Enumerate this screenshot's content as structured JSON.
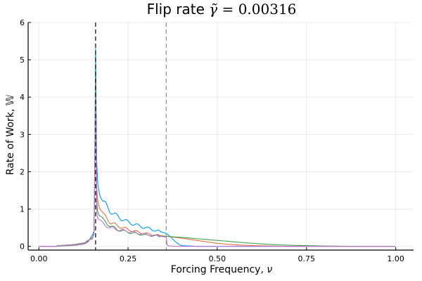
{
  "chart_data": {
    "type": "line",
    "title": {
      "prefix": "Flip rate ",
      "symbol": "γ̃",
      "equals": " = ",
      "value": "0.00316"
    },
    "xlabel": {
      "text": "Forcing Frequency, ",
      "symbol": "ν"
    },
    "ylabel": {
      "text": "Rate of Work, ",
      "symbol": "𝕎"
    },
    "xlim": [
      -0.03,
      1.05
    ],
    "ylim": [
      -0.1,
      6.0
    ],
    "xticks": [
      0.0,
      0.25,
      0.5,
      0.75,
      1.0
    ],
    "xtick_labels": [
      "0.00",
      "0.25",
      "0.50",
      "0.75",
      "1.00"
    ],
    "yticks": [
      0,
      1,
      2,
      3,
      4,
      5,
      6
    ],
    "ytick_labels": [
      "0",
      "1",
      "2",
      "3",
      "4",
      "5",
      "6"
    ],
    "grid": true,
    "legend": "none",
    "vlines": [
      {
        "x": 0.159,
        "color": "#222222"
      },
      {
        "x": 0.357,
        "color": "#999999"
      }
    ],
    "series": [
      {
        "color": "#009AFA",
        "points": [
          [
            0.0,
            0.0
          ],
          [
            0.05,
            0.0
          ],
          [
            0.1,
            0.02
          ],
          [
            0.13,
            0.06
          ],
          [
            0.15,
            0.25
          ],
          [
            0.155,
            0.4
          ],
          [
            0.159,
            5.3
          ],
          [
            0.162,
            2.3
          ],
          [
            0.165,
            1.7
          ],
          [
            0.17,
            1.5
          ],
          [
            0.18,
            1.2
          ],
          [
            0.2,
            0.95
          ],
          [
            0.22,
            0.8
          ],
          [
            0.25,
            0.65
          ],
          [
            0.28,
            0.55
          ],
          [
            0.3,
            0.5
          ],
          [
            0.33,
            0.42
          ],
          [
            0.357,
            0.35
          ],
          [
            0.37,
            0.25
          ],
          [
            0.38,
            0.15
          ],
          [
            0.39,
            0.07
          ],
          [
            0.4,
            0.02
          ],
          [
            0.45,
            0.0
          ],
          [
            0.6,
            0.0
          ],
          [
            0.8,
            0.0
          ],
          [
            1.0,
            0.0
          ]
        ]
      },
      {
        "color": "#E36F47",
        "points": [
          [
            0.0,
            0.0
          ],
          [
            0.05,
            0.0
          ],
          [
            0.1,
            0.02
          ],
          [
            0.13,
            0.06
          ],
          [
            0.15,
            0.2
          ],
          [
            0.155,
            0.35
          ],
          [
            0.159,
            4.5
          ],
          [
            0.162,
            1.6
          ],
          [
            0.165,
            1.3
          ],
          [
            0.17,
            1.1
          ],
          [
            0.18,
            0.85
          ],
          [
            0.2,
            0.65
          ],
          [
            0.22,
            0.55
          ],
          [
            0.25,
            0.45
          ],
          [
            0.28,
            0.38
          ],
          [
            0.3,
            0.34
          ],
          [
            0.33,
            0.3
          ],
          [
            0.357,
            0.27
          ],
          [
            0.4,
            0.22
          ],
          [
            0.45,
            0.15
          ],
          [
            0.5,
            0.08
          ],
          [
            0.55,
            0.04
          ],
          [
            0.6,
            0.02
          ],
          [
            0.7,
            0.0
          ],
          [
            1.0,
            0.0
          ]
        ]
      },
      {
        "color": "#3EA44E",
        "points": [
          [
            0.0,
            0.0
          ],
          [
            0.05,
            0.0
          ],
          [
            0.1,
            0.02
          ],
          [
            0.13,
            0.06
          ],
          [
            0.15,
            0.2
          ],
          [
            0.155,
            0.3
          ],
          [
            0.159,
            4.2
          ],
          [
            0.162,
            1.3
          ],
          [
            0.165,
            1.0
          ],
          [
            0.17,
            0.85
          ],
          [
            0.18,
            0.7
          ],
          [
            0.2,
            0.55
          ],
          [
            0.22,
            0.45
          ],
          [
            0.25,
            0.38
          ],
          [
            0.28,
            0.33
          ],
          [
            0.3,
            0.3
          ],
          [
            0.33,
            0.28
          ],
          [
            0.357,
            0.27
          ],
          [
            0.4,
            0.24
          ],
          [
            0.45,
            0.2
          ],
          [
            0.5,
            0.16
          ],
          [
            0.55,
            0.12
          ],
          [
            0.6,
            0.08
          ],
          [
            0.65,
            0.05
          ],
          [
            0.7,
            0.03
          ],
          [
            0.75,
            0.02
          ],
          [
            0.8,
            0.01
          ],
          [
            0.9,
            0.0
          ],
          [
            1.0,
            0.0
          ]
        ]
      },
      {
        "color": "#C271D2",
        "points": [
          [
            0.0,
            0.0
          ],
          [
            0.05,
            0.0
          ],
          [
            0.1,
            0.02
          ],
          [
            0.13,
            0.06
          ],
          [
            0.15,
            0.2
          ],
          [
            0.155,
            0.3
          ],
          [
            0.159,
            4.0
          ],
          [
            0.162,
            1.0
          ],
          [
            0.165,
            0.8
          ],
          [
            0.17,
            0.7
          ],
          [
            0.18,
            0.6
          ],
          [
            0.2,
            0.5
          ],
          [
            0.22,
            0.45
          ],
          [
            0.25,
            0.4
          ],
          [
            0.28,
            0.35
          ],
          [
            0.3,
            0.32
          ],
          [
            0.33,
            0.28
          ],
          [
            0.357,
            0.25
          ],
          [
            0.36,
            0.02
          ],
          [
            0.38,
            0.0
          ],
          [
            0.6,
            0.0
          ],
          [
            1.0,
            0.0
          ]
        ]
      }
    ]
  }
}
